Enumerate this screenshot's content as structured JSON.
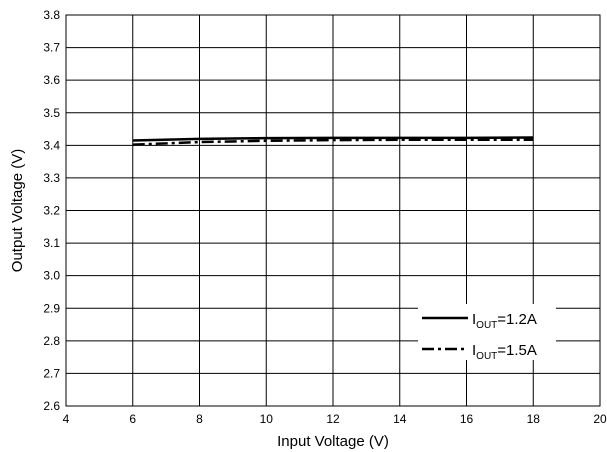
{
  "chart_data": {
    "type": "line",
    "xlabel": "Input Voltage (V)",
    "ylabel": "Output Voltage (V)",
    "xlim": [
      4,
      20
    ],
    "ylim": [
      2.6,
      3.8
    ],
    "xticks": [
      4,
      6,
      8,
      10,
      12,
      14,
      16,
      18,
      20
    ],
    "yticks": [
      2.6,
      2.7,
      2.8,
      2.9,
      3.0,
      3.1,
      3.2,
      3.3,
      3.4,
      3.5,
      3.6,
      3.7,
      3.8
    ],
    "xtick_labels": [
      "4",
      "6",
      "8",
      "10",
      "12",
      "14",
      "16",
      "18",
      "20"
    ],
    "ytick_labels": [
      "2.6",
      "2.7",
      "2.8",
      "2.9",
      "3.0",
      "3.1",
      "3.2",
      "3.3",
      "3.4",
      "3.5",
      "3.6",
      "3.7",
      "3.8"
    ],
    "grid": true,
    "legend_position": "bottom-right",
    "series": [
      {
        "name": "I_OUT=1.2A",
        "legend_main": "I",
        "legend_sub": "OUT",
        "legend_rest": "=1.2A",
        "style": "solid",
        "x": [
          6,
          8,
          10,
          12,
          14,
          16,
          18
        ],
        "y": [
          3.415,
          3.42,
          3.422,
          3.423,
          3.423,
          3.423,
          3.424
        ]
      },
      {
        "name": "I_OUT=1.5A",
        "legend_main": "I",
        "legend_sub": "OUT",
        "legend_rest": "=1.5A",
        "style": "dashdot",
        "x": [
          6,
          8,
          10,
          12,
          14,
          16,
          18
        ],
        "y": [
          3.402,
          3.41,
          3.414,
          3.416,
          3.417,
          3.417,
          3.417
        ]
      }
    ]
  },
  "colors": {
    "line": "#000000",
    "grid": "#000000",
    "background": "#ffffff"
  }
}
